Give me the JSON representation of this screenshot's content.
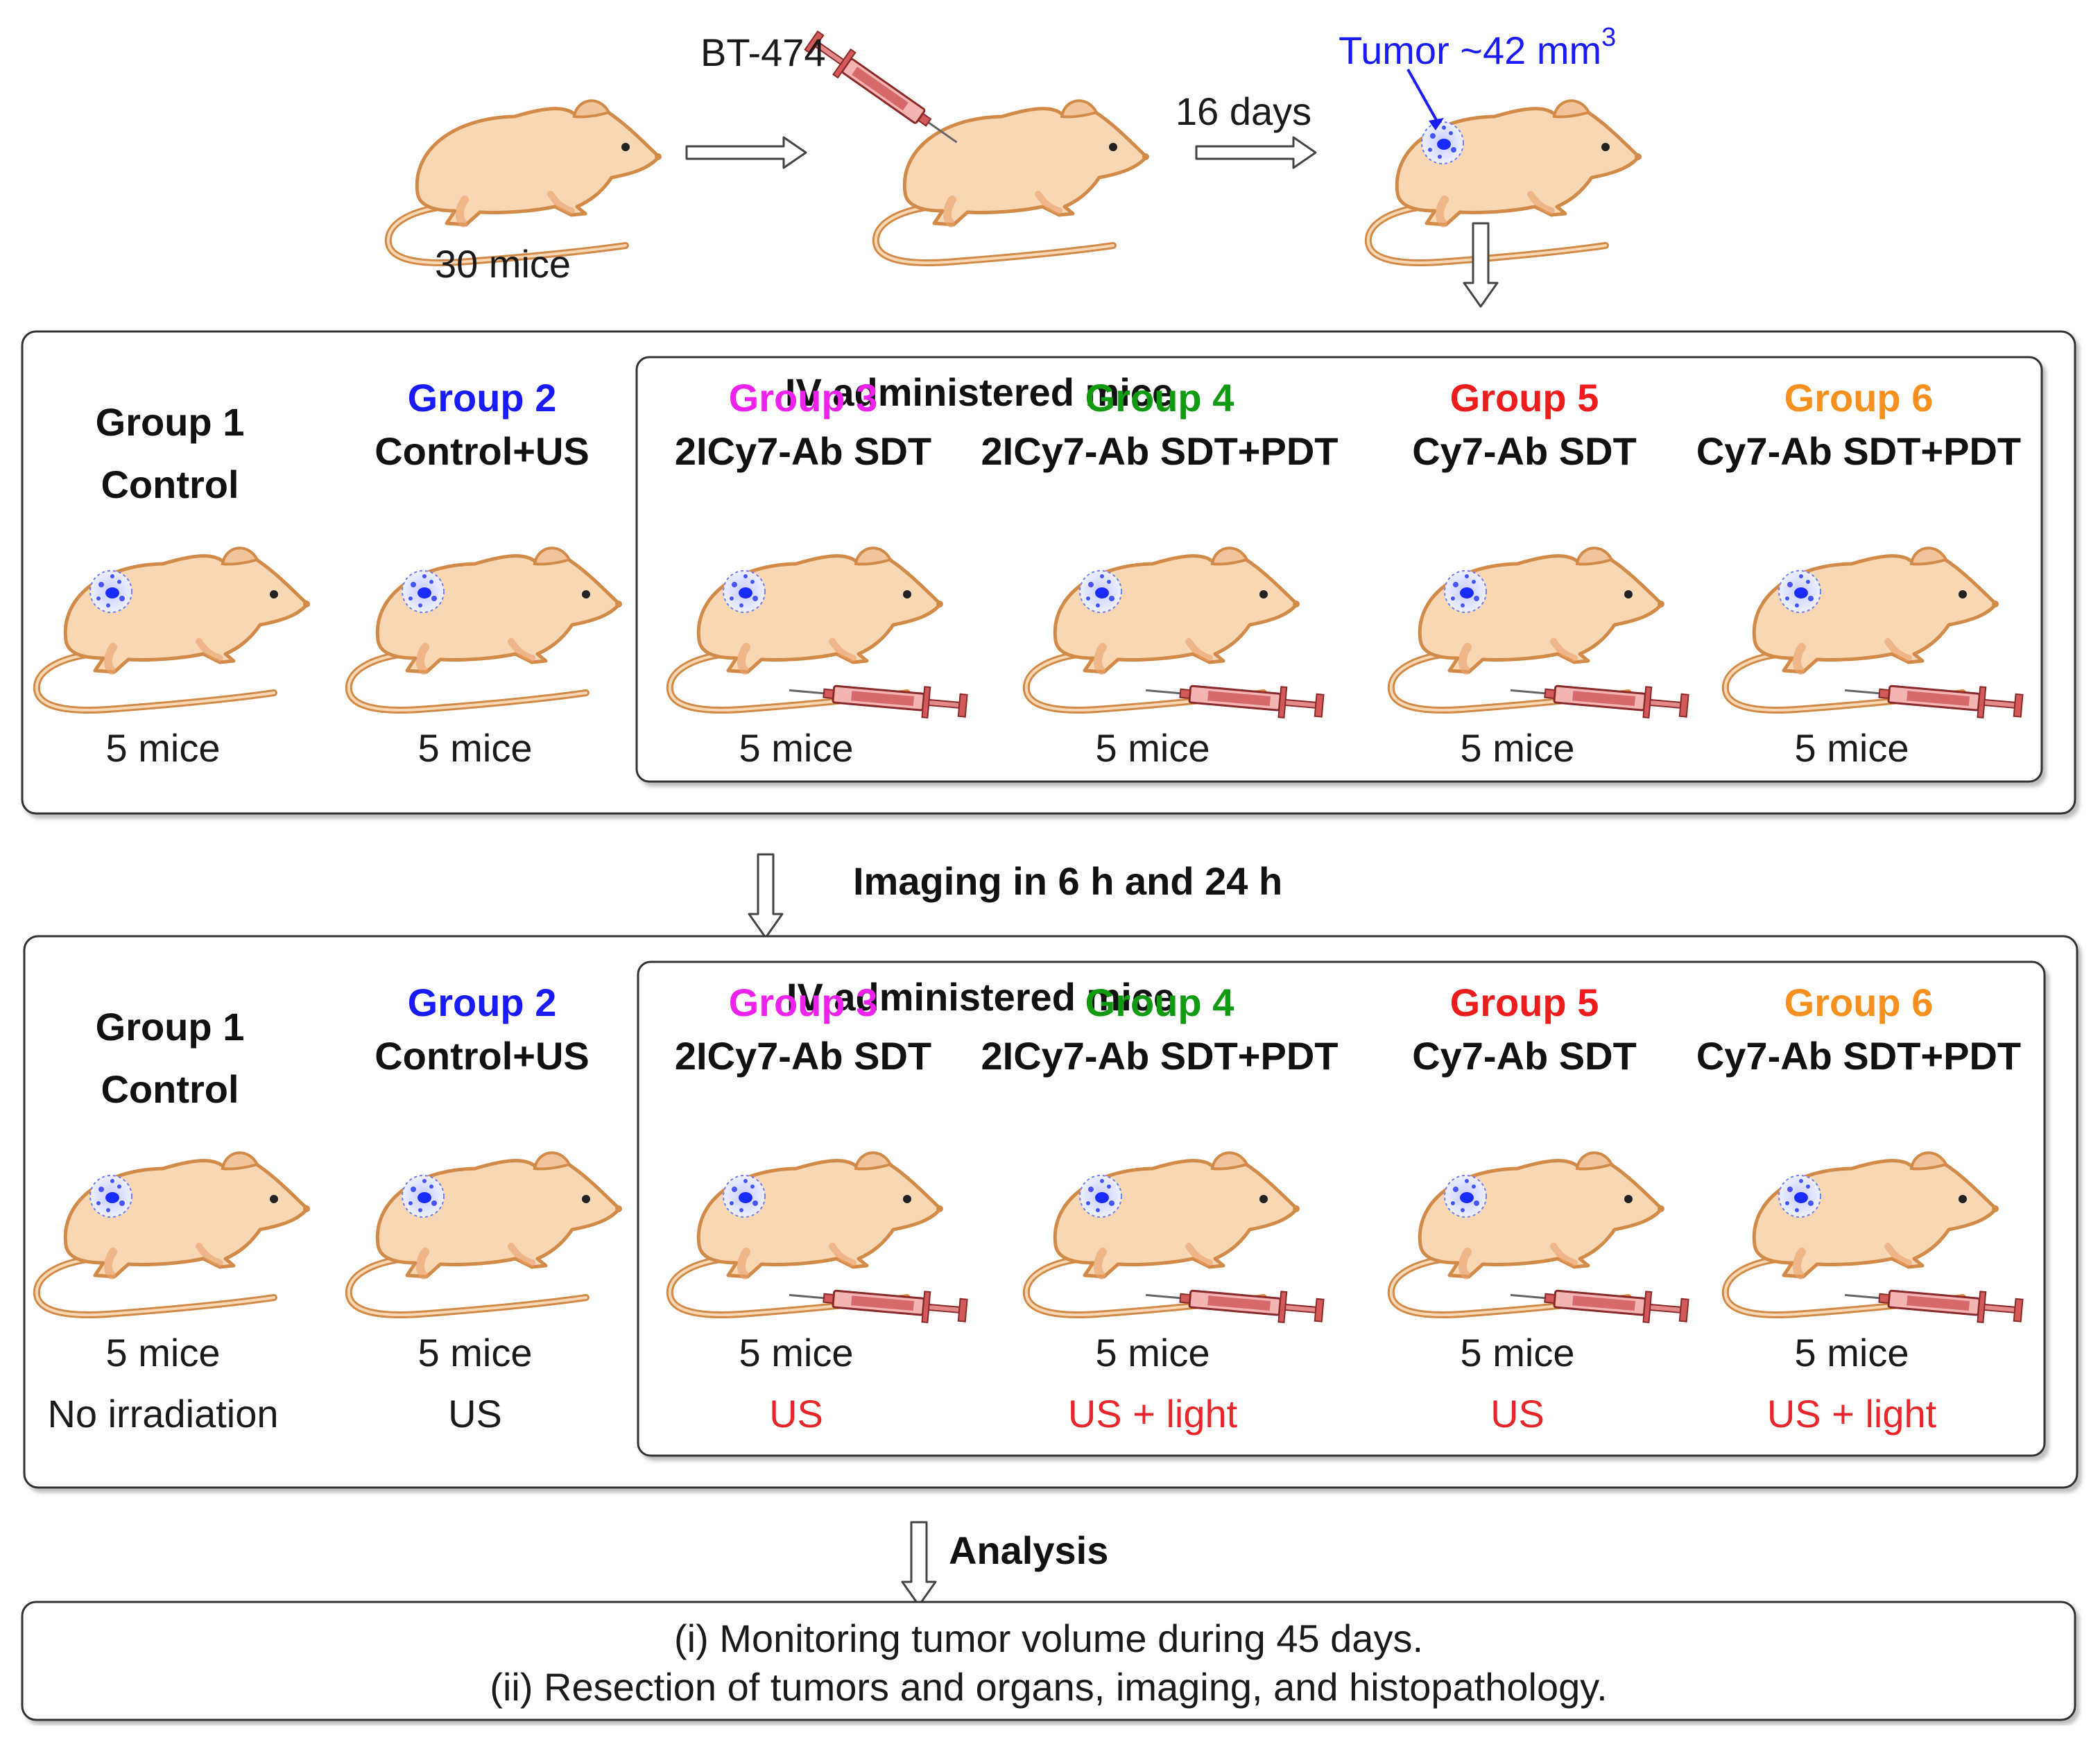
{
  "colors": {
    "mouse_body": "#f7d7b4",
    "mouse_outline": "#d28a48",
    "tumor": "#3a4dff",
    "syringe": "#e58a8a",
    "group1": "#111111",
    "group2": "#1a1aff",
    "group3": "#ee22ee",
    "group4": "#109a10",
    "group5": "#ee1c1c",
    "group6": "#f7901e",
    "treatment": "#e8262b",
    "tumor_label": "#1a1aff"
  },
  "icons": [
    "mouse-icon",
    "tumor-icon",
    "syringe-icon",
    "arrow-right-icon",
    "arrow-down-icon"
  ],
  "top": {
    "start_label": "30 mice",
    "cell_line": "BT-474",
    "duration": "16 days",
    "tumor_label": "Tumor ~42 mm",
    "tumor_unit_sup": "3"
  },
  "box1": {
    "iv_title": "IV administered mice",
    "groups": [
      {
        "name": "Group 1",
        "treatment": "Control",
        "count": "5 mice"
      },
      {
        "name": "Group 2",
        "treatment": "Control+US",
        "count": "5 mice"
      },
      {
        "name": "Group 3",
        "treatment": "2ICy7-Ab SDT",
        "count": "5 mice"
      },
      {
        "name": "Group 4",
        "treatment": "2ICy7-Ab SDT+PDT",
        "count": "5 mice"
      },
      {
        "name": "Group 5",
        "treatment": "Cy7-Ab SDT",
        "count": "5 mice"
      },
      {
        "name": "Group 6",
        "treatment": "Cy7-Ab SDT+PDT",
        "count": "5 mice"
      }
    ]
  },
  "step_imaging": "Imaging in 6 h and 24 h",
  "box2": {
    "iv_title": "IV administered mice",
    "groups": [
      {
        "name": "Group 1",
        "treatment": "Control",
        "count": "5 mice",
        "irradiation": "No irradiation"
      },
      {
        "name": "Group 2",
        "treatment": "Control+US",
        "count": "5 mice",
        "irradiation": "US"
      },
      {
        "name": "Group 3",
        "treatment": "2ICy7-Ab SDT",
        "count": "5 mice",
        "irradiation": "US"
      },
      {
        "name": "Group 4",
        "treatment": "2ICy7-Ab SDT+PDT",
        "count": "5 mice",
        "irradiation": "US + light"
      },
      {
        "name": "Group 5",
        "treatment": "Cy7-Ab SDT",
        "count": "5 mice",
        "irradiation": "US"
      },
      {
        "name": "Group 6",
        "treatment": "Cy7-Ab SDT+PDT",
        "count": "5 mice",
        "irradiation": "US + light"
      }
    ]
  },
  "step_analysis": "Analysis",
  "analysis": {
    "line1": "(i) Monitoring tumor volume during 45 days.",
    "line2": "(ii) Resection of tumors and organs, imaging, and histopathology."
  }
}
